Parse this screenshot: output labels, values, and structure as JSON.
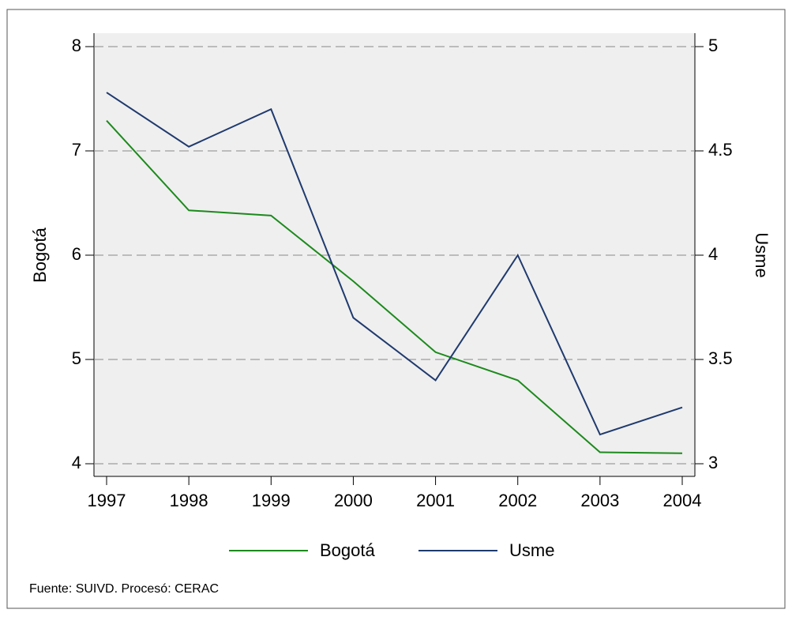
{
  "chart_data": {
    "type": "line",
    "categories": [
      "1997",
      "1998",
      "1999",
      "2000",
      "2001",
      "2002",
      "2003",
      "2004"
    ],
    "series": [
      {
        "name": "Bogotá",
        "color": "#1c8a1c",
        "values": [
          7.29,
          6.43,
          6.38,
          5.75,
          5.07,
          4.8,
          4.11,
          4.1
        ]
      },
      {
        "name": "Usme",
        "color": "#1f3a6e",
        "axis": "y2",
        "values": [
          4.78,
          4.52,
          4.7,
          3.7,
          3.4,
          4.0,
          3.14,
          3.27
        ]
      }
    ],
    "ylabel": "Bogotá",
    "y2label": "Usme",
    "ylim": [
      4,
      8
    ],
    "yticks": [
      4,
      5,
      6,
      7,
      8
    ],
    "y2lim": [
      3,
      5
    ],
    "y2ticks": [
      3,
      3.5,
      4,
      4.5,
      5
    ],
    "grid": true,
    "legend": "bottom",
    "note": "Fuente: SUIVD. Procesó: CERAC"
  }
}
